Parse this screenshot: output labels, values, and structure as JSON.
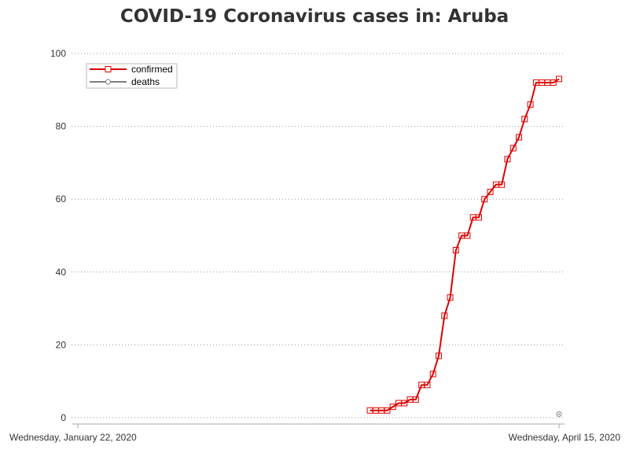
{
  "chart_data": {
    "type": "line",
    "title": "COVID-19 Coronavirus cases in: Aruba",
    "xlabel": "",
    "ylabel": "",
    "x_ticks": [
      "Wednesday, January 22, 2020",
      "Wednesday, April 15, 2020"
    ],
    "x_range": [
      "2020-01-22",
      "2020-04-15"
    ],
    "ylim": [
      0,
      100
    ],
    "y_ticks": [
      0,
      20,
      40,
      60,
      80,
      100
    ],
    "grid": "horizontal dotted",
    "legend_position": "top-left",
    "series": [
      {
        "name": "confirmed",
        "color": "#e00000",
        "marker": "square",
        "points": [
          [
            "2020-03-13",
            2
          ],
          [
            "2020-03-14",
            2
          ],
          [
            "2020-03-15",
            2
          ],
          [
            "2020-03-16",
            2
          ],
          [
            "2020-03-17",
            3
          ],
          [
            "2020-03-18",
            4
          ],
          [
            "2020-03-19",
            4
          ],
          [
            "2020-03-20",
            5
          ],
          [
            "2020-03-21",
            5
          ],
          [
            "2020-03-22",
            9
          ],
          [
            "2020-03-23",
            9
          ],
          [
            "2020-03-24",
            12
          ],
          [
            "2020-03-25",
            17
          ],
          [
            "2020-03-26",
            28
          ],
          [
            "2020-03-27",
            33
          ],
          [
            "2020-03-28",
            46
          ],
          [
            "2020-03-29",
            50
          ],
          [
            "2020-03-30",
            50
          ],
          [
            "2020-03-31",
            55
          ],
          [
            "2020-04-01",
            55
          ],
          [
            "2020-04-02",
            60
          ],
          [
            "2020-04-03",
            62
          ],
          [
            "2020-04-04",
            64
          ],
          [
            "2020-04-05",
            64
          ],
          [
            "2020-04-06",
            71
          ],
          [
            "2020-04-07",
            74
          ],
          [
            "2020-04-08",
            77
          ],
          [
            "2020-04-09",
            82
          ],
          [
            "2020-04-10",
            86
          ],
          [
            "2020-04-11",
            92
          ],
          [
            "2020-04-12",
            92
          ],
          [
            "2020-04-13",
            92
          ],
          [
            "2020-04-14",
            92
          ],
          [
            "2020-04-15",
            93
          ]
        ]
      },
      {
        "name": "deaths",
        "color": "#808080",
        "marker": "circle",
        "points": [
          [
            "2020-04-15",
            1
          ]
        ]
      }
    ]
  }
}
